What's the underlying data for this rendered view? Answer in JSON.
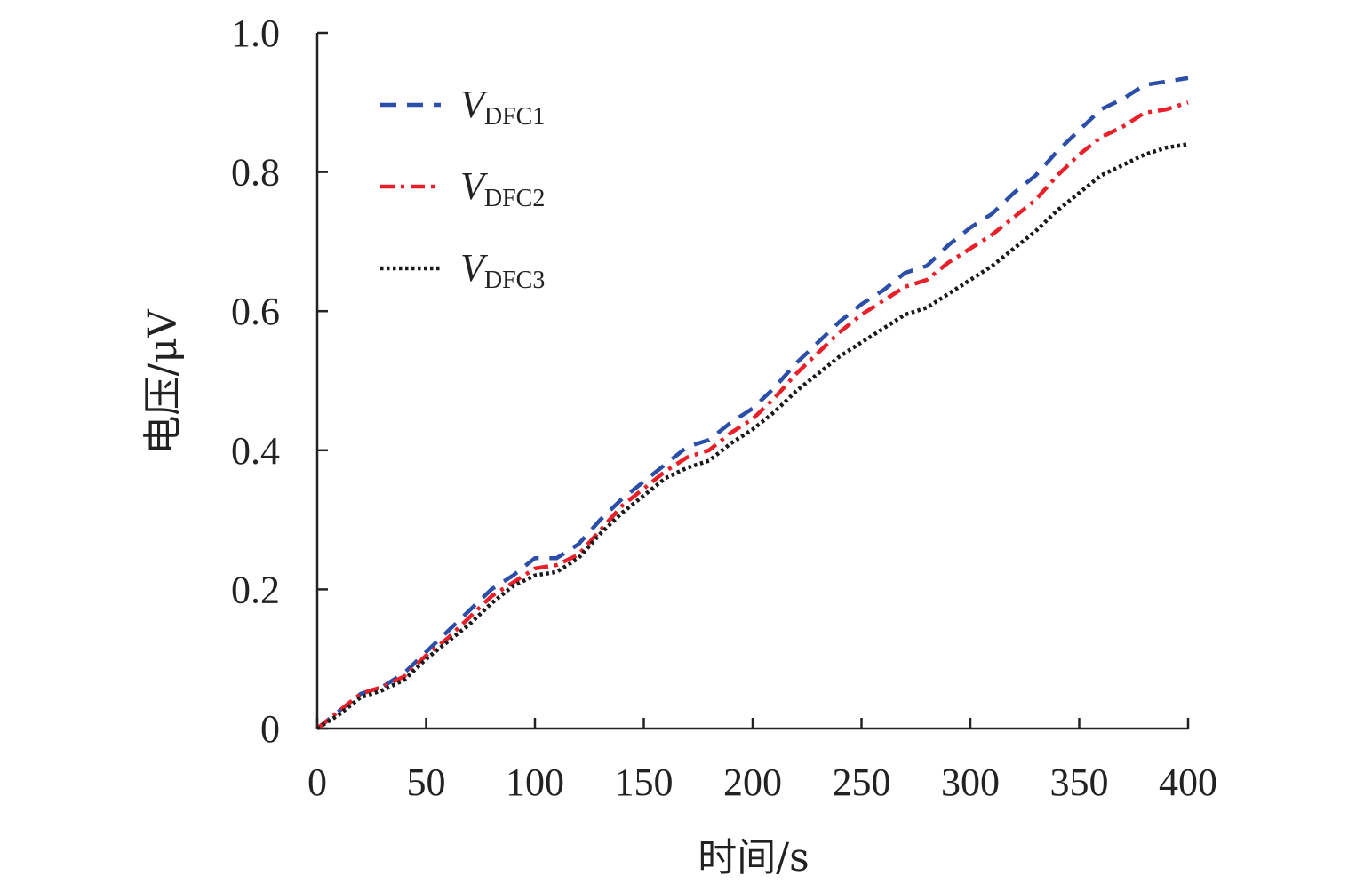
{
  "chart_data": {
    "type": "line",
    "title": "",
    "xlabel": "时间/s",
    "ylabel": "电压/μV",
    "xlim": [
      0,
      400
    ],
    "ylim": [
      0,
      1.0
    ],
    "x_ticks": [
      "0",
      "50",
      "100",
      "150",
      "200",
      "250",
      "300",
      "350",
      "400"
    ],
    "y_ticks": [
      "0",
      "0.2",
      "0.4",
      "0.6",
      "0.8",
      "1.0"
    ],
    "grid": false,
    "legend_position": "top-left",
    "x": [
      0,
      10,
      20,
      30,
      40,
      50,
      60,
      70,
      80,
      90,
      100,
      110,
      120,
      130,
      140,
      150,
      160,
      170,
      180,
      190,
      200,
      210,
      220,
      230,
      240,
      250,
      260,
      270,
      280,
      290,
      300,
      310,
      320,
      330,
      340,
      350,
      360,
      370,
      380,
      390,
      400
    ],
    "series": [
      {
        "name_main": "V",
        "name_sub": "DFC1",
        "color": "#2b4ea8",
        "dash": "dashed",
        "values": [
          0.0,
          0.025,
          0.05,
          0.06,
          0.08,
          0.11,
          0.14,
          0.17,
          0.2,
          0.22,
          0.245,
          0.245,
          0.265,
          0.3,
          0.33,
          0.355,
          0.38,
          0.405,
          0.415,
          0.44,
          0.46,
          0.49,
          0.525,
          0.555,
          0.585,
          0.61,
          0.63,
          0.655,
          0.665,
          0.695,
          0.72,
          0.74,
          0.77,
          0.795,
          0.83,
          0.86,
          0.89,
          0.905,
          0.925,
          0.93,
          0.935
        ]
      },
      {
        "name_main": "V",
        "name_sub": "DFC2",
        "color": "#e8202a",
        "dash": "dashdot",
        "values": [
          0.0,
          0.025,
          0.05,
          0.06,
          0.075,
          0.105,
          0.13,
          0.16,
          0.19,
          0.21,
          0.23,
          0.235,
          0.25,
          0.285,
          0.32,
          0.345,
          0.37,
          0.39,
          0.4,
          0.425,
          0.445,
          0.475,
          0.51,
          0.54,
          0.57,
          0.595,
          0.615,
          0.635,
          0.645,
          0.67,
          0.69,
          0.71,
          0.735,
          0.76,
          0.795,
          0.825,
          0.85,
          0.865,
          0.885,
          0.89,
          0.9
        ]
      },
      {
        "name_main": "V",
        "name_sub": "DFC3",
        "color": "#1a1a1a",
        "dash": "dotted",
        "values": [
          0.0,
          0.02,
          0.045,
          0.055,
          0.07,
          0.1,
          0.125,
          0.15,
          0.18,
          0.205,
          0.22,
          0.225,
          0.245,
          0.28,
          0.31,
          0.335,
          0.36,
          0.375,
          0.385,
          0.41,
          0.43,
          0.455,
          0.485,
          0.51,
          0.535,
          0.555,
          0.575,
          0.595,
          0.605,
          0.625,
          0.645,
          0.665,
          0.69,
          0.715,
          0.745,
          0.77,
          0.795,
          0.81,
          0.825,
          0.835,
          0.84
        ]
      }
    ]
  }
}
